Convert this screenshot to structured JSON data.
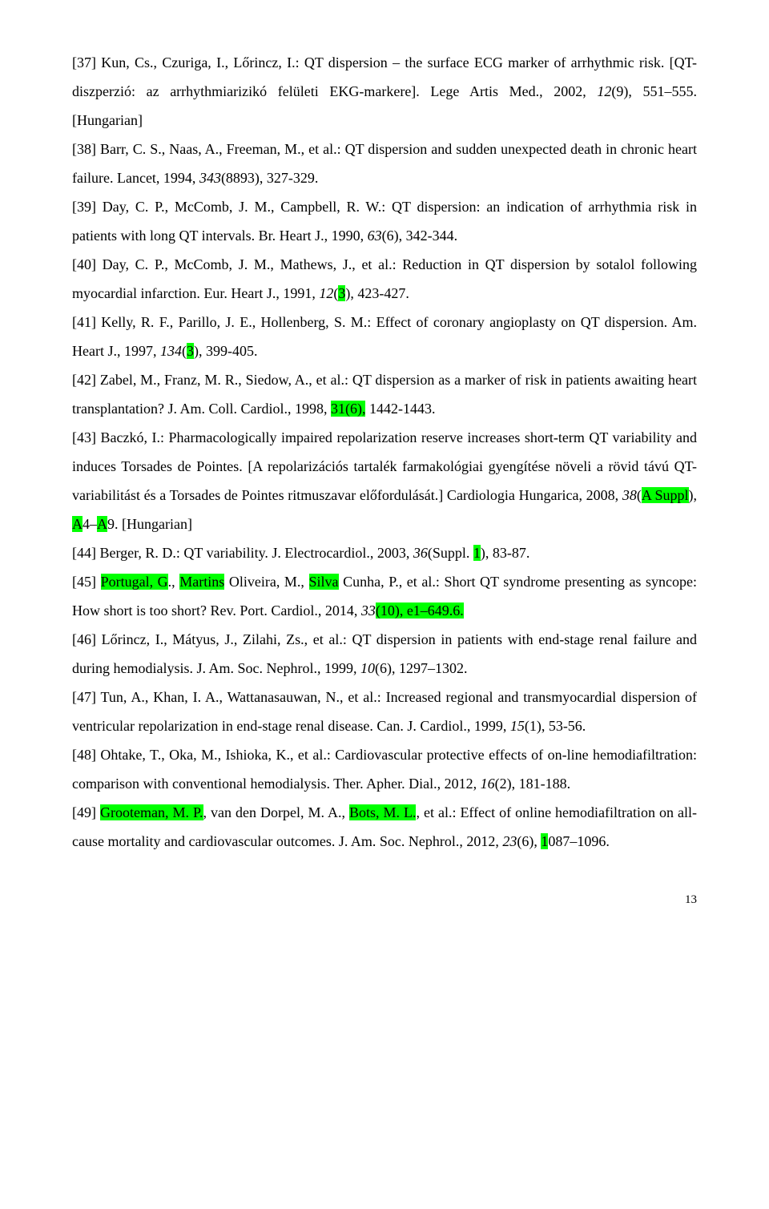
{
  "refs": {
    "r37": {
      "pre": "[37] Kun, Cs., Czuriga, I., Lőrincz, I.: QT dispersion – the surface ECG marker of arrhythmic risk. [QT-diszperzió: az arrhythmiarizikó felületi EKG-markere]. Lege Artis Med., 2002, ",
      "vol": "12",
      "post": "(9), 551–555. [Hungarian]"
    },
    "r38": {
      "pre": "[38] Barr, C. S., Naas, A., Freeman, M., et al.: QT dispersion and sudden unexpected death in chronic heart failure. Lancet, 1994, ",
      "vol": "343",
      "post": "(8893), 327-329."
    },
    "r39": {
      "pre": "[39] Day, C. P., McComb, J. M., Campbell, R. W.: QT dispersion: an indication of arrhythmia risk in patients with long QT intervals. Br. Heart J., 1990, ",
      "vol": "63",
      "post": "(6), 342-344."
    },
    "r40": {
      "pre": "[40] Day, C. P., McComb, J. M., Mathews, J., et al.: Reduction in QT dispersion by sotalol following myocardial infarction. Eur. Heart J., 1991, ",
      "vol": "12",
      "issue_open": "(",
      "issue_hl": "3",
      "post": "), 423-427."
    },
    "r41": {
      "pre": "[41] Kelly, R. F., Parillo, J. E., Hollenberg, S. M.: Effect of coronary angioplasty on QT dispersion. Am. Heart J., 1997, ",
      "vol": "134",
      "issue_open": "(",
      "issue_hl": "3",
      "post": "), 399-405."
    },
    "r42": {
      "pre": "[42] Zabel, M., Franz, M. R., Siedow, A., et al.: QT dispersion as a marker of risk in patients awaiting heart transplantation? J. Am. Coll. Cardiol., 1998, ",
      "vol": "",
      "hl1": "31(6),",
      "post": " 1442-1443."
    },
    "r43": {
      "pre": "[43] Baczkó, I.: Pharmacologically impaired repolarization reserve increases short-term QT variability and induces Torsades de Pointes. [A repolarizációs tartalék farmakológiai gyengítése növeli a rövid távú QT-variabilitást és a Torsades de Pointes ritmuszavar előfordulását.] Cardiologia Hungarica, 2008, ",
      "vol": "38",
      "issue_open": "(",
      "hl1": "A Suppl",
      "mid1": "), ",
      "hl2": "A",
      "mid2": "4–",
      "hl3": "A",
      "post": "9. [Hungarian]"
    },
    "r44": {
      "pre": "[44] Berger, R. D.: QT variability. J. Electrocardiol., 2003, ",
      "vol": "36",
      "mid": "(Suppl. ",
      "hl1": "1",
      "post": "), 83-87."
    },
    "r45": {
      "pre": "[45] ",
      "hl1": "Portugal, G",
      "mid1": "., ",
      "hl2": "Martins",
      "mid2": " Oliveira, M., ",
      "hl3": "Silva",
      "mid3": " Cunha, P., et al.: Short QT syndrome presenting as syncope: How short is too short? ",
      "journal": "Rev. Port. Cardiol., 2014, ",
      "vol": "33",
      "hl4": "(10), e1–649.6."
    },
    "r46": {
      "pre": "[46] Lőrincz, I., Mátyus, J., Zilahi, Zs., et al.: QT dispersion in patients with end-stage renal failure and during hemodialysis. J. Am. Soc. Nephrol., 1999, ",
      "vol": "10",
      "post": "(6), 1297–1302."
    },
    "r47": {
      "pre": "[47] Tun, A., Khan, I. A., Wattanasauwan, N., et al.: Increased regional and transmyocardial dispersion of ventricular repolarization in end-stage renal disease. Can. J. Cardiol., 1999, ",
      "vol": "15",
      "post": "(1), 53-56."
    },
    "r48": {
      "pre": "[48] Ohtake, T., Oka, M., Ishioka, K., et al.: Cardiovascular protective effects of on-line hemodiafiltration: comparison with conventional hemodialysis. Ther. Apher. Dial., 2012, ",
      "vol": "16",
      "post": "(2), 181-188."
    },
    "r49": {
      "pre": "[49] ",
      "hl1": "Grooteman, M. P.",
      "mid1": ", van den Dorpel, M. A., ",
      "hl2": "Bots, M. L.",
      "mid2": ", et al.: Effect of online hemodiafiltration on all-cause mortality and cardiovascular outcomes. J. Am. Soc. Nephrol., 2012, ",
      "vol": "23",
      "mid3": "(6), ",
      "hl3": "1",
      "post": "087–1096."
    }
  },
  "page_number": "13"
}
